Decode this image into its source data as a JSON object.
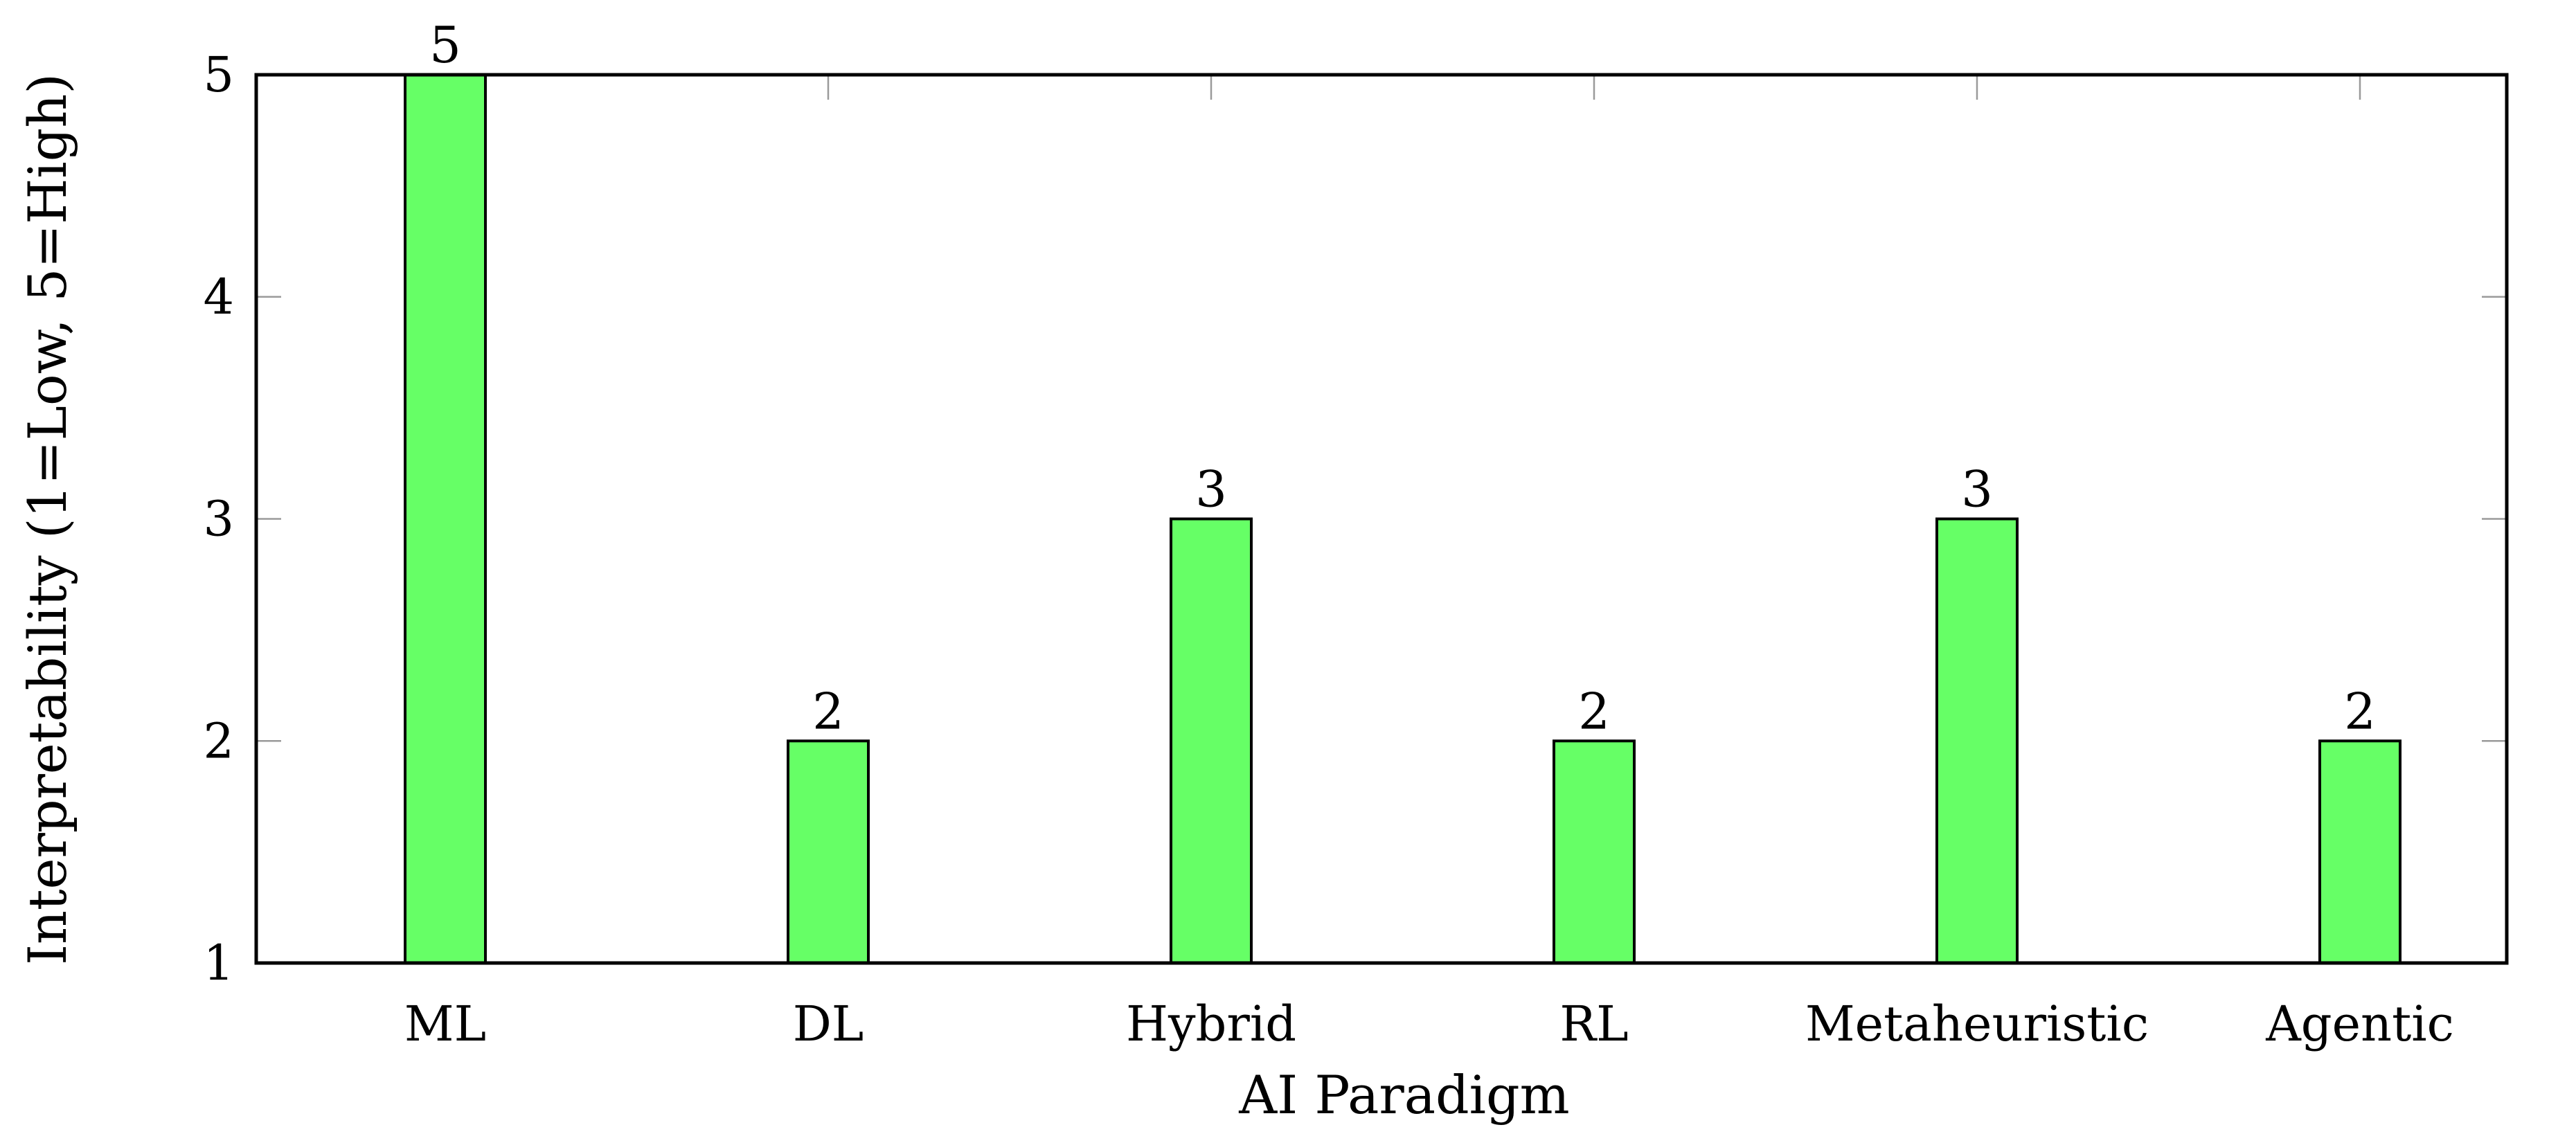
{
  "chart_data": {
    "type": "bar",
    "categories": [
      "ML",
      "DL",
      "Hybrid",
      "RL",
      "Metaheuristic",
      "Agentic"
    ],
    "values": [
      5,
      2,
      3,
      2,
      3,
      2
    ],
    "title": "",
    "xlabel": "AI Paradigm",
    "ylabel": "Interpretability (1=Low, 5=High)",
    "ylim": [
      1,
      5
    ],
    "yticks": [
      1,
      2,
      3,
      4,
      5
    ],
    "grid": false,
    "legend": "none",
    "bar_color": "#66ff66",
    "data_labels": true
  }
}
